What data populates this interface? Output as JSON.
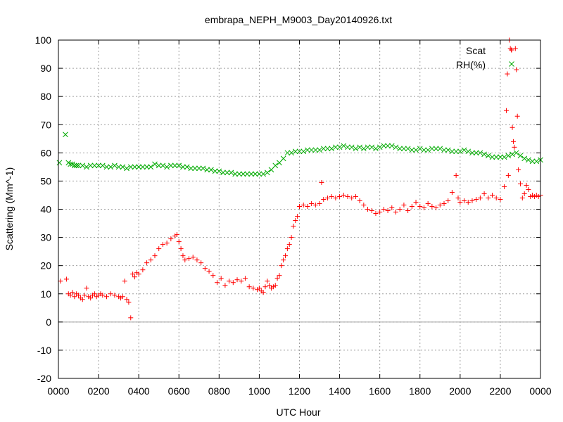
{
  "chart_data": {
    "type": "scatter",
    "title": "embrapa_NEPH_M9003_Day20140926.txt",
    "xlabel": "UTC Hour",
    "ylabel": "Scattering (Mm^-1)",
    "xlim": [
      0,
      24
    ],
    "ylim": [
      -20,
      100
    ],
    "x_ticks": [
      0,
      2,
      4,
      6,
      8,
      10,
      12,
      14,
      16,
      18,
      20,
      22,
      24
    ],
    "x_tick_labels": [
      "0000",
      "0200",
      "0400",
      "0600",
      "0800",
      "1000",
      "1200",
      "1400",
      "1600",
      "1800",
      "2000",
      "2200",
      "0000"
    ],
    "y_ticks": [
      -20,
      -10,
      0,
      10,
      20,
      30,
      40,
      50,
      60,
      70,
      80,
      90,
      100
    ],
    "y_tick_labels": [
      "-20",
      "-10",
      "0",
      "10",
      "20",
      "30",
      "40",
      "50",
      "60",
      "70",
      "80",
      "90",
      "100"
    ],
    "grid": true,
    "zero_line": true,
    "legend_position": "top-right",
    "series": [
      {
        "name": "Scat",
        "color": "#ff0000",
        "marker": "plus",
        "x": [
          0.1,
          0.4,
          0.5,
          0.6,
          0.7,
          0.8,
          0.9,
          1.0,
          1.1,
          1.2,
          1.3,
          1.4,
          1.5,
          1.6,
          1.7,
          1.8,
          1.9,
          2.0,
          2.1,
          2.2,
          2.4,
          2.6,
          2.8,
          3.0,
          3.1,
          3.2,
          3.3,
          3.4,
          3.5,
          3.6,
          3.7,
          3.8,
          3.9,
          4.0,
          4.2,
          4.4,
          4.6,
          4.8,
          5.0,
          5.2,
          5.4,
          5.6,
          5.8,
          5.9,
          6.0,
          6.1,
          6.2,
          6.3,
          6.5,
          6.7,
          6.9,
          7.1,
          7.3,
          7.5,
          7.7,
          7.9,
          8.1,
          8.3,
          8.5,
          8.7,
          8.9,
          9.1,
          9.3,
          9.5,
          9.7,
          9.9,
          10.0,
          10.1,
          10.2,
          10.3,
          10.4,
          10.5,
          10.6,
          10.7,
          10.8,
          10.9,
          11.0,
          11.1,
          11.2,
          11.3,
          11.4,
          11.5,
          11.6,
          11.7,
          11.8,
          11.9,
          12.0,
          12.2,
          12.4,
          12.6,
          12.8,
          13.0,
          13.1,
          13.2,
          13.4,
          13.6,
          13.8,
          14.0,
          14.2,
          14.4,
          14.6,
          14.8,
          15.0,
          15.2,
          15.4,
          15.6,
          15.8,
          16.0,
          16.2,
          16.4,
          16.6,
          16.8,
          17.0,
          17.2,
          17.4,
          17.6,
          17.8,
          18.0,
          18.2,
          18.4,
          18.6,
          18.8,
          19.0,
          19.2,
          19.4,
          19.6,
          19.8,
          19.9,
          20.0,
          20.2,
          20.4,
          20.6,
          20.8,
          21.0,
          21.2,
          21.4,
          21.6,
          21.8,
          22.0,
          22.2,
          22.3,
          22.35,
          22.4,
          22.45,
          22.5,
          22.55,
          22.6,
          22.65,
          22.7,
          22.75,
          22.8,
          22.85,
          22.9,
          23.0,
          23.1,
          23.2,
          23.3,
          23.4,
          23.5,
          23.6,
          23.7,
          23.8,
          23.9,
          24.0
        ],
        "values": [
          14.5,
          15.2,
          10.0,
          9.5,
          10.5,
          9.0,
          10.0,
          9.5,
          8.5,
          8.0,
          9.5,
          12.0,
          9.0,
          8.5,
          9.5,
          10.0,
          9.0,
          9.5,
          10.0,
          9.5,
          9.0,
          10.0,
          9.5,
          9.0,
          8.5,
          9.0,
          14.5,
          8.0,
          7.0,
          1.5,
          17.0,
          16.0,
          17.5,
          17.0,
          18.5,
          21.0,
          22.0,
          23.5,
          26.0,
          27.5,
          28.0,
          29.5,
          30.5,
          31.0,
          28.5,
          26.0,
          23.5,
          22.0,
          22.5,
          23.0,
          22.0,
          21.0,
          19.0,
          18.0,
          16.5,
          14.0,
          15.5,
          13.0,
          14.5,
          14.0,
          15.0,
          14.5,
          15.5,
          12.5,
          12.0,
          11.5,
          12.0,
          11.0,
          10.5,
          12.5,
          14.5,
          13.0,
          12.0,
          12.5,
          13.0,
          15.5,
          16.5,
          20.0,
          22.0,
          23.5,
          26.0,
          27.5,
          30.0,
          34.0,
          36.0,
          37.5,
          41.0,
          41.5,
          41.0,
          42.0,
          41.5,
          42.0,
          49.5,
          43.5,
          44.0,
          44.5,
          44.0,
          44.5,
          45.0,
          44.5,
          44.0,
          44.5,
          43.0,
          41.5,
          40.0,
          39.5,
          38.5,
          39.0,
          40.0,
          39.5,
          40.5,
          39.0,
          40.0,
          41.5,
          39.5,
          41.0,
          42.5,
          41.0,
          40.5,
          42.0,
          41.0,
          40.5,
          41.5,
          42.0,
          43.0,
          46.0,
          52.0,
          44.0,
          42.5,
          43.0,
          42.5,
          43.0,
          43.5,
          44.0,
          45.5,
          44.0,
          45.0,
          44.0,
          43.5,
          48.0,
          75.0,
          88.0,
          52.0,
          100.0,
          97.0,
          96.5,
          69.0,
          64.0,
          62.0,
          97.0,
          89.5,
          73.0,
          54.0,
          49.0,
          44.0,
          45.5,
          48.5,
          47.0,
          44.5,
          45.0,
          44.5,
          45.0,
          44.5,
          45.0
        ]
      },
      {
        "name": "RH(%)",
        "color": "#00aa00",
        "marker": "cross",
        "x": [
          0.05,
          0.35,
          0.5,
          0.6,
          0.7,
          0.8,
          0.9,
          1.0,
          1.2,
          1.4,
          1.6,
          1.8,
          2.0,
          2.2,
          2.4,
          2.6,
          2.8,
          3.0,
          3.2,
          3.4,
          3.6,
          3.8,
          4.0,
          4.2,
          4.4,
          4.6,
          4.8,
          5.0,
          5.2,
          5.4,
          5.6,
          5.8,
          6.0,
          6.2,
          6.4,
          6.6,
          6.8,
          7.0,
          7.2,
          7.4,
          7.6,
          7.8,
          8.0,
          8.2,
          8.4,
          8.6,
          8.8,
          9.0,
          9.2,
          9.4,
          9.6,
          9.8,
          10.0,
          10.2,
          10.4,
          10.6,
          10.8,
          11.0,
          11.2,
          11.4,
          11.6,
          11.8,
          12.0,
          12.2,
          12.4,
          12.6,
          12.8,
          13.0,
          13.2,
          13.4,
          13.6,
          13.8,
          14.0,
          14.2,
          14.4,
          14.6,
          14.8,
          15.0,
          15.2,
          15.4,
          15.6,
          15.8,
          16.0,
          16.2,
          16.4,
          16.6,
          16.8,
          17.0,
          17.2,
          17.4,
          17.6,
          17.8,
          18.0,
          18.2,
          18.4,
          18.6,
          18.8,
          19.0,
          19.2,
          19.4,
          19.6,
          19.8,
          20.0,
          20.2,
          20.4,
          20.6,
          20.8,
          21.0,
          21.2,
          21.4,
          21.6,
          21.8,
          22.0,
          22.2,
          22.4,
          22.6,
          22.8,
          23.0,
          23.2,
          23.4,
          23.6,
          23.8,
          24.0
        ],
        "values": [
          56.5,
          66.5,
          56.5,
          56.0,
          56.0,
          55.5,
          55.5,
          55.5,
          55.5,
          55.0,
          55.5,
          55.5,
          55.5,
          55.5,
          55.0,
          55.0,
          55.5,
          55.0,
          55.0,
          54.5,
          55.0,
          55.0,
          55.0,
          55.0,
          55.0,
          55.0,
          56.0,
          55.5,
          55.5,
          55.0,
          55.5,
          55.5,
          55.5,
          55.0,
          55.0,
          54.5,
          54.5,
          54.5,
          54.5,
          54.0,
          54.0,
          53.5,
          53.5,
          53.0,
          53.0,
          53.0,
          52.5,
          52.5,
          52.5,
          52.5,
          52.5,
          52.5,
          52.5,
          52.5,
          53.0,
          54.0,
          55.5,
          56.5,
          58.0,
          60.0,
          60.0,
          60.5,
          60.5,
          60.5,
          61.0,
          61.0,
          61.0,
          61.0,
          61.5,
          61.5,
          61.5,
          62.0,
          62.0,
          62.5,
          62.0,
          62.0,
          61.5,
          62.0,
          61.5,
          62.0,
          62.0,
          61.5,
          62.0,
          62.5,
          62.5,
          62.5,
          62.0,
          61.5,
          61.5,
          61.5,
          61.0,
          61.0,
          61.5,
          61.0,
          61.0,
          61.5,
          61.5,
          61.5,
          61.0,
          61.0,
          60.5,
          60.5,
          60.5,
          61.0,
          60.5,
          60.0,
          60.0,
          60.0,
          59.5,
          59.0,
          58.5,
          58.5,
          58.5,
          58.5,
          59.0,
          59.5,
          60.0,
          59.0,
          58.0,
          57.5,
          57.0,
          57.0,
          57.5
        ]
      }
    ]
  }
}
